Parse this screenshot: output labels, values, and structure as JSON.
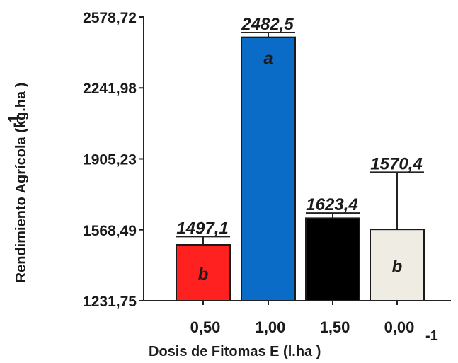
{
  "chart_data": {
    "type": "bar",
    "xlabel": "Dosis de Fitomas E (l.ha )",
    "xlabel_exponent": "-1",
    "ylabel": "Rendimiento Agrícola (kg.ha )",
    "ylabel_exponent": "-1",
    "ylim": [
      1231.75,
      2578.72
    ],
    "y_ticks": [
      "2578,72",
      "2241,98",
      "1905,23",
      "1568,49",
      "1231,75"
    ],
    "y_tick_values": [
      2578.72,
      2241.98,
      1905.23,
      1568.49,
      1231.75
    ],
    "categories": [
      "0,50",
      "1,00",
      "1,50",
      "0,00"
    ],
    "values": [
      1497.1,
      2482.5,
      1623.4,
      1570.4
    ],
    "value_labels": [
      "1497,1",
      "2482,5",
      "1623,4",
      "1570,4"
    ],
    "error_upper": [
      1536,
      2505,
      1648,
      1842
    ],
    "group_letters": [
      "b",
      "a",
      "",
      "b"
    ],
    "colors": [
      "#ff2020",
      "#0a6cc7",
      "#000000",
      "#efece3"
    ],
    "group_letter_colors": [
      "#1a1a1a",
      "#1a1a1a",
      "#1a1a1a",
      "#1a1a1a"
    ],
    "grid": false,
    "legend": "none"
  }
}
